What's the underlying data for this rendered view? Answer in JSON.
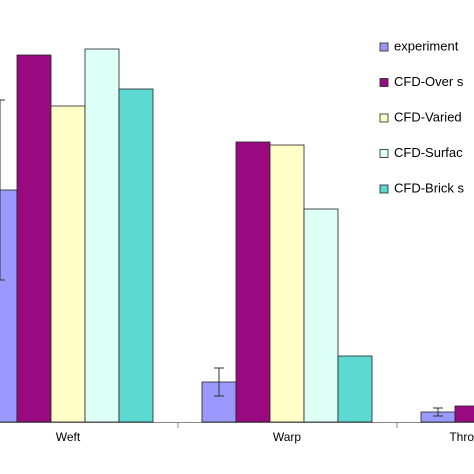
{
  "chart_data": {
    "type": "bar",
    "categories": [
      "Weft",
      "Warp",
      "Thro"
    ],
    "series": [
      {
        "name": "experiment",
        "color": "#9999ff",
        "values": [
          232,
          40,
          10
        ],
        "errors": [
          90,
          14,
          4
        ]
      },
      {
        "name": "CFD-Over s",
        "color": "#990a80",
        "values": [
          367,
          280,
          16
        ]
      },
      {
        "name": "CFD-Varied",
        "color": "#ffffc8",
        "values": [
          316,
          277,
          null
        ]
      },
      {
        "name": "CFD-Surfac",
        "color": "#ddfff6",
        "values": [
          373,
          213,
          null
        ]
      },
      {
        "name": "CFD-Brick s",
        "color": "#5cdad2",
        "values": [
          333,
          66,
          null
        ]
      }
    ],
    "ylim": [
      0,
      422
    ]
  }
}
